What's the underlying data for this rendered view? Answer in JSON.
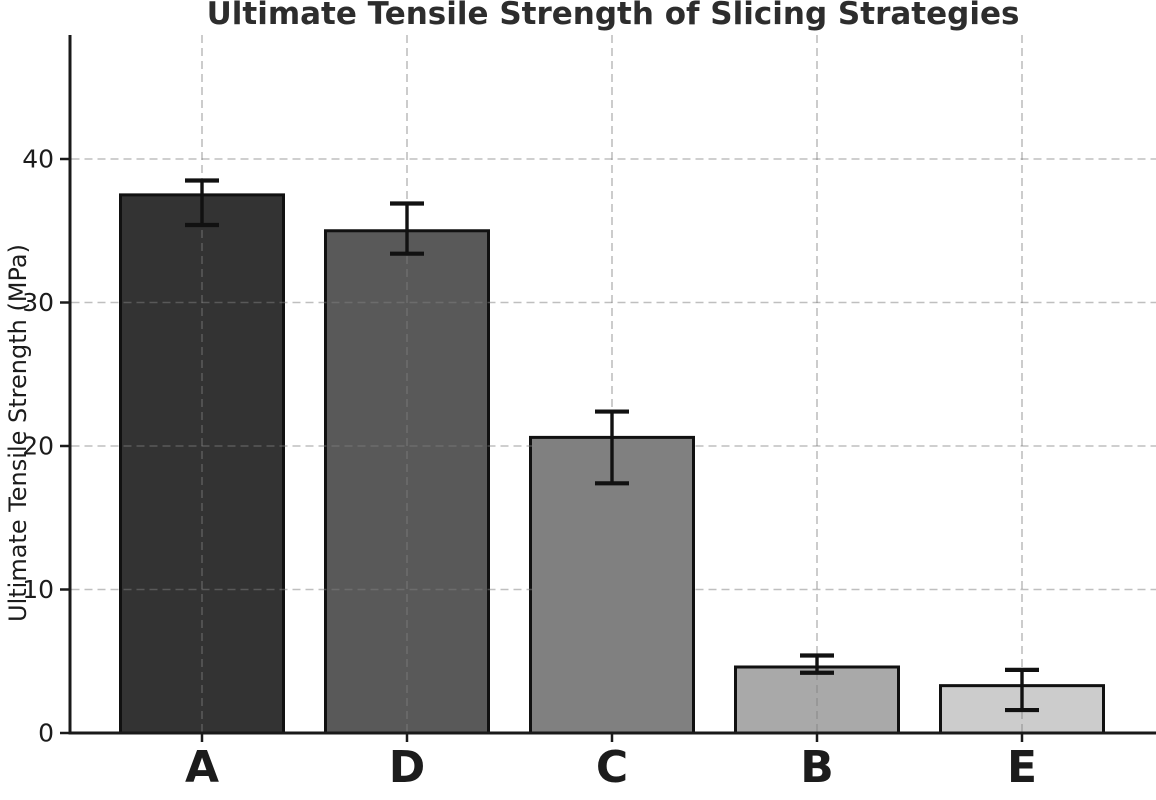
{
  "chart_data": {
    "type": "bar",
    "title": "Ultimate Tensile Strength of Slicing Strategies",
    "xlabel": "",
    "ylabel": "Ultimate Tensile Strength (MPa)",
    "categories": [
      "A",
      "D",
      "C",
      "B",
      "E"
    ],
    "values": [
      37.5,
      35.0,
      20.6,
      4.6,
      3.3
    ],
    "error_upper": [
      38.5,
      36.9,
      22.4,
      5.4,
      4.4
    ],
    "error_lower": [
      35.4,
      33.4,
      17.4,
      4.2,
      1.6
    ],
    "yticks": [
      0,
      10,
      20,
      30,
      40
    ],
    "ytick_labels": [
      "0",
      "10",
      "20",
      "30",
      "40"
    ],
    "ylim": [
      0,
      48.6
    ],
    "grid": {
      "visible": true,
      "style": "dashed",
      "axes": "both",
      "above_bars": true
    },
    "legend_position": "none",
    "bar_colors": [
      "#333333",
      "#595959",
      "#808080",
      "#a9a9a9",
      "#cccccc"
    ],
    "bar_edge_color": "#111111",
    "error_bar_color": "#111111",
    "grid_color": "#808080",
    "axis_color": "#1a1a1a",
    "text_color": "#1c1c1c",
    "title_color": "#2d2d2d"
  }
}
